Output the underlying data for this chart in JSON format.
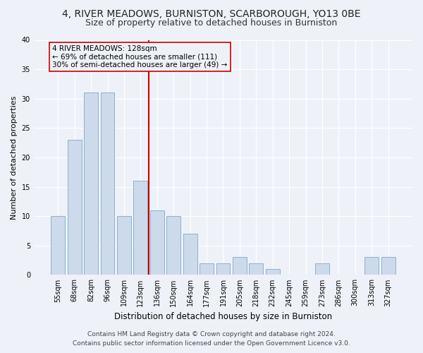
{
  "title": "4, RIVER MEADOWS, BURNISTON, SCARBOROUGH, YO13 0BE",
  "subtitle": "Size of property relative to detached houses in Burniston",
  "xlabel": "Distribution of detached houses by size in Burniston",
  "ylabel": "Number of detached properties",
  "categories": [
    "55sqm",
    "68sqm",
    "82sqm",
    "96sqm",
    "109sqm",
    "123sqm",
    "136sqm",
    "150sqm",
    "164sqm",
    "177sqm",
    "191sqm",
    "205sqm",
    "218sqm",
    "232sqm",
    "245sqm",
    "259sqm",
    "273sqm",
    "286sqm",
    "300sqm",
    "313sqm",
    "327sqm"
  ],
  "values": [
    10,
    23,
    31,
    31,
    10,
    16,
    11,
    10,
    7,
    2,
    2,
    3,
    2,
    1,
    0,
    0,
    2,
    0,
    0,
    3,
    3
  ],
  "bar_color": "#cddaeb",
  "bar_edge_color": "#7aaac8",
  "reference_line_x": 5.5,
  "reference_label": "4 RIVER MEADOWS: 128sqm",
  "annotation_line1": "← 69% of detached houses are smaller (111)",
  "annotation_line2": "30% of semi-detached houses are larger (49) →",
  "annotation_box_color": "#cc0000",
  "ylim": [
    0,
    40
  ],
  "yticks": [
    0,
    5,
    10,
    15,
    20,
    25,
    30,
    35,
    40
  ],
  "footnote1": "Contains HM Land Registry data © Crown copyright and database right 2024.",
  "footnote2": "Contains public sector information licensed under the Open Government Licence v3.0.",
  "bg_color": "#eef2f8",
  "plot_bg_color": "#eef2f8",
  "grid_color": "#ffffff",
  "title_fontsize": 10,
  "subtitle_fontsize": 9,
  "xlabel_fontsize": 8.5,
  "ylabel_fontsize": 8,
  "tick_fontsize": 7,
  "annotation_fontsize": 7.5,
  "footnote_fontsize": 6.5
}
